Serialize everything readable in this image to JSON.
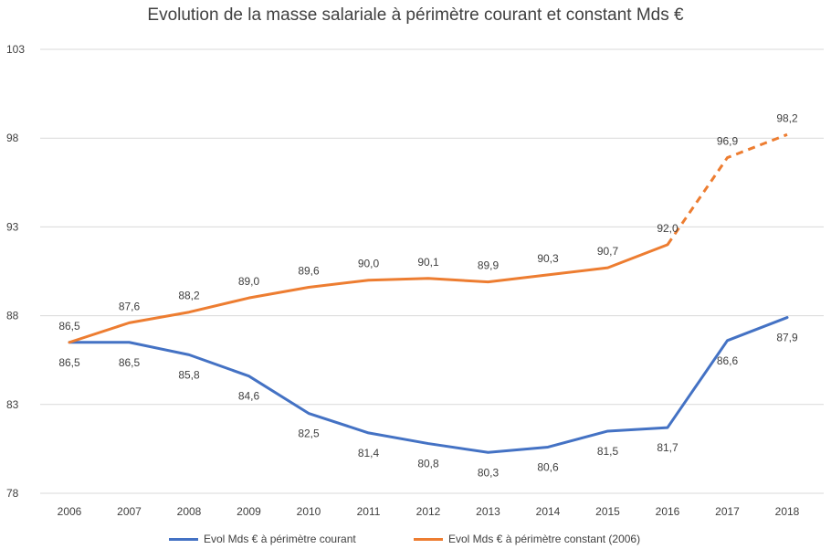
{
  "chart_data": {
    "type": "line",
    "title": "Evolution de la masse salariale à périmètre courant et constant Mds €",
    "categories": [
      "2006",
      "2007",
      "2008",
      "2009",
      "2010",
      "2011",
      "2012",
      "2013",
      "2014",
      "2015",
      "2016",
      "2017",
      "2018"
    ],
    "y_ticks": [
      "103",
      "98",
      "93",
      "88",
      "83",
      "78"
    ],
    "ylim": [
      78,
      103
    ],
    "grid": true,
    "legend_position": "bottom",
    "series": [
      {
        "name": "Evol Mds € à périmètre courant",
        "color": "#4472C4",
        "values": [
          86.5,
          86.5,
          85.8,
          84.6,
          82.5,
          81.4,
          80.8,
          80.3,
          80.6,
          81.5,
          81.7,
          86.6,
          87.9
        ],
        "labels": [
          "86,5",
          "86,5",
          "85,8",
          "84,6",
          "82,5",
          "81,4",
          "80,8",
          "80,3",
          "80,6",
          "81,5",
          "81,7",
          "86,6",
          "87,9"
        ],
        "label_position": "below"
      },
      {
        "name": "Evol   Mds € à périmètre constant (2006)",
        "color": "#ED7D31",
        "values": [
          86.5,
          87.6,
          88.2,
          89.0,
          89.6,
          90.0,
          90.1,
          89.9,
          90.3,
          90.7,
          92.0,
          96.9,
          98.2
        ],
        "labels": [
          "86,5",
          "87,6",
          "88,2",
          "89,0",
          "89,6",
          "90,0",
          "90,1",
          "89,9",
          "90,3",
          "90,7",
          "92,0",
          "96,9",
          "98,2"
        ],
        "label_position": "above",
        "dashed_from_index": 10
      }
    ]
  }
}
